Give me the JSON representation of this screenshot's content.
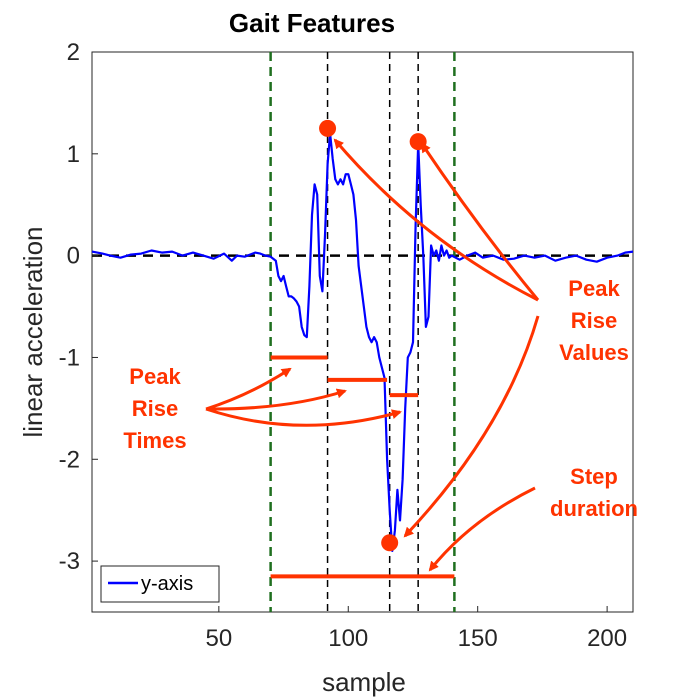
{
  "chart_data": {
    "type": "line",
    "title": "Gait Features",
    "xlabel": "sample",
    "ylabel": "linear acceleration",
    "xlim": [
      1,
      210
    ],
    "ylim": [
      -3.5,
      2
    ],
    "xticks": [
      50,
      100,
      150,
      200
    ],
    "yticks": [
      -3,
      -2,
      -1,
      0,
      1,
      2
    ],
    "grid": false,
    "legend": {
      "placement": "bottom-left",
      "entries": [
        "y-axis"
      ]
    },
    "series": [
      {
        "name": "y-axis",
        "color": "#0000ff",
        "points": [
          [
            1,
            0.04
          ],
          [
            5,
            0.02
          ],
          [
            8,
            0.0
          ],
          [
            12,
            -0.02
          ],
          [
            16,
            0.01
          ],
          [
            20,
            0.02
          ],
          [
            24,
            0.05
          ],
          [
            28,
            0.03
          ],
          [
            32,
            0.04
          ],
          [
            36,
            0.0
          ],
          [
            40,
            0.03
          ],
          [
            44,
            0.0
          ],
          [
            48,
            -0.03
          ],
          [
            52,
            0.02
          ],
          [
            55,
            -0.05
          ],
          [
            57,
            0.0
          ],
          [
            60,
            -0.01
          ],
          [
            64,
            0.03
          ],
          [
            66,
            0.02
          ],
          [
            68,
            0.0
          ],
          [
            70,
            -0.01
          ],
          [
            72,
            -0.05
          ],
          [
            73,
            -0.2
          ],
          [
            74,
            -0.25
          ],
          [
            75,
            -0.2
          ],
          [
            76,
            -0.3
          ],
          [
            77,
            -0.4
          ],
          [
            78,
            -0.4
          ],
          [
            79,
            -0.42
          ],
          [
            80,
            -0.45
          ],
          [
            81,
            -0.5
          ],
          [
            82,
            -0.7
          ],
          [
            83,
            -0.78
          ],
          [
            84,
            -0.8
          ],
          [
            85,
            -0.3
          ],
          [
            86,
            0.4
          ],
          [
            87,
            0.7
          ],
          [
            88,
            0.6
          ],
          [
            89,
            -0.2
          ],
          [
            90,
            -0.35
          ],
          [
            91,
            0.2
          ],
          [
            92,
            0.9
          ],
          [
            93,
            1.2
          ],
          [
            94,
            0.95
          ],
          [
            95,
            0.75
          ],
          [
            96,
            0.7
          ],
          [
            97,
            0.75
          ],
          [
            98,
            0.7
          ],
          [
            99,
            0.8
          ],
          [
            100,
            0.8
          ],
          [
            101,
            0.7
          ],
          [
            102,
            0.6
          ],
          [
            103,
            0.35
          ],
          [
            104,
            -0.1
          ],
          [
            105,
            -0.3
          ],
          [
            106,
            -0.5
          ],
          [
            107,
            -0.7
          ],
          [
            108,
            -0.8
          ],
          [
            109,
            -0.85
          ],
          [
            110,
            -0.8
          ],
          [
            111,
            -0.85
          ],
          [
            112,
            -1.0
          ],
          [
            113,
            -1.1
          ],
          [
            114,
            -1.2
          ],
          [
            115,
            -2.0
          ],
          [
            116,
            -2.5
          ],
          [
            117,
            -2.9
          ],
          [
            118,
            -2.7
          ],
          [
            119,
            -2.3
          ],
          [
            120,
            -2.6
          ],
          [
            121,
            -2.2
          ],
          [
            122,
            -1.5
          ],
          [
            123,
            -1.0
          ],
          [
            124,
            -0.95
          ],
          [
            125,
            -0.85
          ],
          [
            126,
            0.3
          ],
          [
            127,
            1.1
          ],
          [
            128,
            0.5
          ],
          [
            129,
            0.0
          ],
          [
            130,
            -0.7
          ],
          [
            131,
            -0.6
          ],
          [
            132,
            0.1
          ],
          [
            133,
            0.0
          ],
          [
            134,
            0.05
          ],
          [
            135,
            -0.05
          ],
          [
            136,
            0.1
          ],
          [
            137,
            0.0
          ],
          [
            138,
            0.05
          ],
          [
            139,
            -0.02
          ],
          [
            140,
            0.0
          ],
          [
            143,
            -0.04
          ],
          [
            146,
            0.0
          ],
          [
            149,
            0.03
          ],
          [
            152,
            -0.02
          ],
          [
            156,
            0.0
          ],
          [
            160,
            -0.04
          ],
          [
            164,
            -0.03
          ],
          [
            168,
            0.0
          ],
          [
            172,
            -0.02
          ],
          [
            176,
            0.0
          ],
          [
            180,
            -0.05
          ],
          [
            184,
            -0.02
          ],
          [
            188,
            0.0
          ],
          [
            192,
            -0.04
          ],
          [
            196,
            -0.06
          ],
          [
            200,
            -0.02
          ],
          [
            204,
            0.0
          ],
          [
            207,
            0.03
          ],
          [
            210,
            0.04
          ]
        ]
      }
    ],
    "reference_lines": {
      "horizontal_dashed_y": 0,
      "green_dashed_x": [
        70,
        141
      ],
      "black_dashed_x": [
        92,
        116,
        127
      ]
    },
    "peak_points": [
      [
        92,
        1.25
      ],
      [
        127,
        1.12
      ],
      [
        116,
        -2.82
      ]
    ],
    "rise_time_segments": [
      {
        "x": [
          70,
          92
        ],
        "y": -1.0
      },
      {
        "x": [
          92,
          115
        ],
        "y": -1.22
      },
      {
        "x": [
          116,
          127
        ],
        "y": -1.37
      }
    ],
    "step_duration_segment": {
      "x": [
        70,
        141
      ],
      "y": -3.15
    },
    "annotations": {
      "peak_rise_times": [
        "Peak",
        "Rise",
        "Times"
      ],
      "peak_rise_values": [
        "Peak",
        "Rise",
        "Values"
      ],
      "step_duration": [
        "Step",
        "duration"
      ]
    },
    "annotation_color": "#ff3300"
  }
}
